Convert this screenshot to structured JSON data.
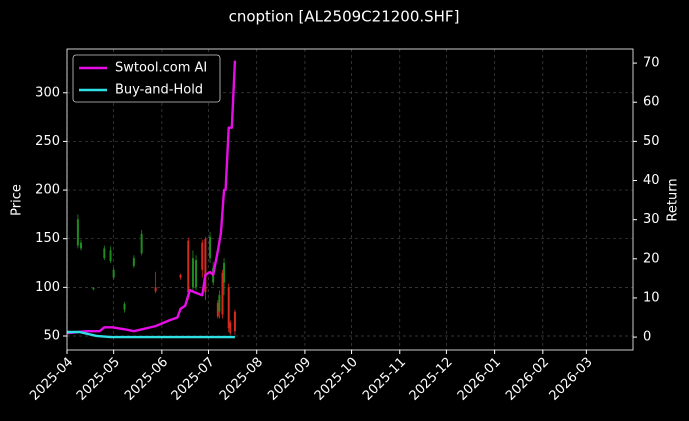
{
  "chart_data": {
    "type": "candlestick",
    "title": "cnoption [AL2509C21200.SHF]",
    "ylabel": "Price",
    "y2label": "Return",
    "xlim": [
      "2025-04-01",
      "2026-03-31"
    ],
    "xticks": [
      {
        "value": "2025-04-01",
        "label": "2025-04"
      },
      {
        "value": "2025-05-01",
        "label": "2025-05"
      },
      {
        "value": "2025-06-01",
        "label": "2025-06"
      },
      {
        "value": "2025-07-01",
        "label": "2025-07"
      },
      {
        "value": "2025-08-01",
        "label": "2025-08"
      },
      {
        "value": "2025-09-01",
        "label": "2025-09"
      },
      {
        "value": "2025-10-01",
        "label": "2025-10"
      },
      {
        "value": "2025-11-01",
        "label": "2025-11"
      },
      {
        "value": "2025-12-01",
        "label": "2025-12"
      },
      {
        "value": "2026-01-01",
        "label": "2026-01"
      },
      {
        "value": "2026-02-01",
        "label": "2026-02"
      },
      {
        "value": "2026-03-01",
        "label": "2026-03"
      }
    ],
    "ylim": [
      35.6,
      345
    ],
    "yticks": [
      50,
      100,
      150,
      200,
      250,
      300
    ],
    "y2lim": [
      -3.3,
      73.6
    ],
    "y2ticks": [
      0,
      10,
      20,
      30,
      40,
      50,
      60,
      70
    ],
    "grid": true,
    "legend_position": "upper left",
    "up_color": "#1f8c1f",
    "down_color": "#d62a1e",
    "candles": {
      "x": [
        "2025-04-08",
        "2025-04-10",
        "2025-04-18",
        "2025-04-25",
        "2025-04-29",
        "2025-05-01",
        "2025-05-08",
        "2025-05-14",
        "2025-05-19",
        "2025-05-28",
        "2025-06-13",
        "2025-06-18",
        "2025-06-21",
        "2025-06-23",
        "2025-06-27",
        "2025-06-29",
        "2025-07-02",
        "2025-07-04",
        "2025-07-07",
        "2025-07-08",
        "2025-07-10",
        "2025-07-11",
        "2025-07-14",
        "2025-07-15",
        "2025-07-18"
      ],
      "open": [
        143,
        140,
        98,
        130,
        127,
        110,
        77,
        122,
        135,
        100,
        113,
        148,
        100,
        100,
        146,
        150,
        130,
        105,
        84,
        75,
        115,
        105,
        100,
        64,
        75
      ],
      "high": [
        175,
        149,
        100,
        143,
        142,
        120,
        85,
        133,
        159,
        116,
        114,
        151,
        138,
        133,
        149,
        152,
        157,
        126,
        87,
        97,
        118,
        130,
        104,
        66,
        77
      ],
      "low": [
        140,
        138,
        97,
        128,
        125,
        108,
        74,
        120,
        133,
        94,
        108,
        87,
        97,
        97,
        110,
        87,
        125,
        102,
        68,
        68,
        68,
        92,
        54,
        51,
        51
      ],
      "close": [
        170,
        146,
        99.5,
        140,
        138,
        118,
        83,
        130,
        155,
        96,
        110,
        95,
        130,
        128,
        118,
        95,
        152,
        120,
        70,
        92,
        72,
        125,
        58,
        53,
        55
      ]
    },
    "series": [
      {
        "name": "Swtool.com AI",
        "color": "#e60ee6",
        "axis": "y2",
        "x": [
          "2025-04-01",
          "2025-04-13",
          "2025-04-22",
          "2025-04-25",
          "2025-04-30",
          "2025-05-08",
          "2025-05-14",
          "2025-05-28",
          "2025-06-06",
          "2025-06-11",
          "2025-06-13",
          "2025-06-16",
          "2025-06-19",
          "2025-06-23",
          "2025-06-27",
          "2025-06-29",
          "2025-07-02",
          "2025-07-04",
          "2025-07-07",
          "2025-07-09",
          "2025-07-11",
          "2025-07-12",
          "2025-07-14",
          "2025-07-16",
          "2025-07-18"
        ],
        "values": [
          1,
          1.5,
          1.5,
          2.5,
          2.5,
          2,
          1.5,
          2.8,
          4.3,
          5,
          7.2,
          8,
          12,
          11.3,
          10.7,
          15.9,
          16.6,
          15.9,
          22,
          26.6,
          37.6,
          37.6,
          53.5,
          53.5,
          70.6
        ]
      },
      {
        "name": "Buy-and-Hold",
        "color": "#2ee0e6",
        "axis": "y2",
        "x": [
          "2025-04-01",
          "2025-04-09",
          "2025-04-20",
          "2025-04-29",
          "2025-07-18"
        ],
        "values": [
          1.3,
          1.3,
          0.3,
          0,
          0
        ]
      }
    ]
  }
}
